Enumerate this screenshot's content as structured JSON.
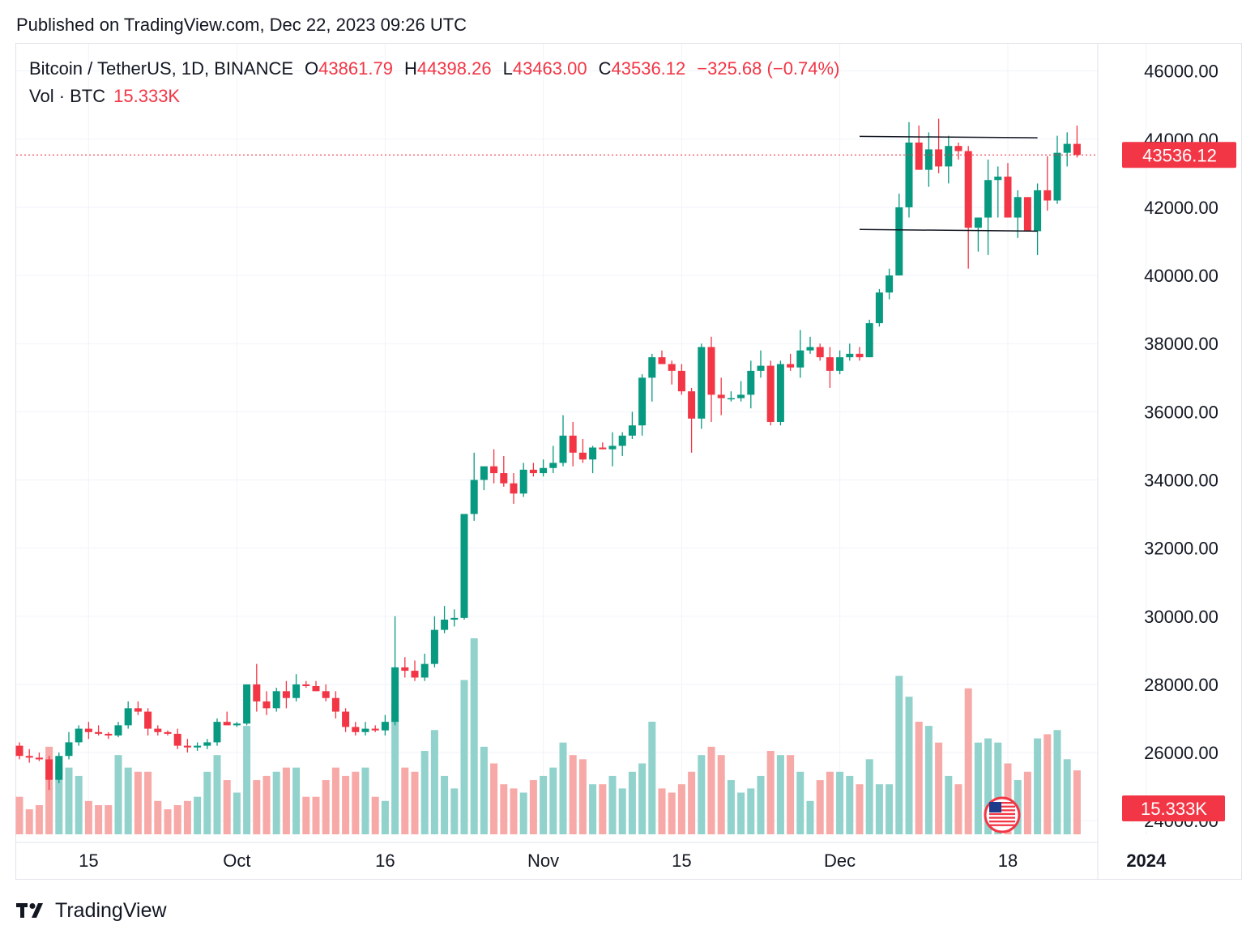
{
  "header": {
    "published": "Published on TradingView.com, Dec 22, 2023 09:26 UTC"
  },
  "legend": {
    "symbol": "Bitcoin / TetherUS, 1D, BINANCE",
    "open_label": "O",
    "open": "43861.79",
    "high_label": "H",
    "high": "44398.26",
    "low_label": "L",
    "low": "43463.00",
    "close_label": "C",
    "close": "43536.12",
    "change": "−325.68 (−0.74%)",
    "vol_label": "Vol · BTC",
    "vol_value": "15.333K"
  },
  "badges": {
    "last_price": "43536.12",
    "last_volume": "15.333K"
  },
  "footer": {
    "brand": "TradingView"
  },
  "colors": {
    "up": "#089981",
    "down": "#f23645",
    "up_vol": "#92d2cc",
    "down_vol": "#f7a9a7",
    "grid": "#f0f3fa"
  },
  "chart_data": {
    "type": "candlestick",
    "ylim": [
      23600,
      46800
    ],
    "y_ticks": [
      "46000.00",
      "44000.00",
      "42000.00",
      "40000.00",
      "38000.00",
      "36000.00",
      "34000.00",
      "32000.00",
      "30000.00",
      "28000.00",
      "26000.00",
      "24000.00"
    ],
    "y_tick_values": [
      46000,
      44000,
      42000,
      40000,
      38000,
      36000,
      34000,
      32000,
      30000,
      28000,
      26000,
      24000
    ],
    "x_ticks": [
      {
        "label": "15",
        "index": 7
      },
      {
        "label": "Oct",
        "index": 22
      },
      {
        "label": "16",
        "index": 37
      },
      {
        "label": "Nov",
        "index": 53
      },
      {
        "label": "15",
        "index": 67
      },
      {
        "label": "Dec",
        "index": 83
      },
      {
        "label": "18",
        "index": 100
      },
      {
        "label": "2024",
        "index": 114
      }
    ],
    "last_price": 43536.12,
    "annotations": {
      "upper_line": {
        "from_index": 85,
        "from": 44080,
        "to_index": 103,
        "to": 44040
      },
      "lower_line": {
        "from_index": 85,
        "from": 41350,
        "to_index": 103,
        "to": 41300
      }
    },
    "candles": [
      [
        26200,
        26300,
        25800,
        25900,
        9
      ],
      [
        25900,
        26100,
        25700,
        25850,
        6
      ],
      [
        25850,
        26000,
        25750,
        25800,
        7
      ],
      [
        25800,
        25900,
        24900,
        25200,
        21
      ],
      [
        25200,
        26000,
        25100,
        25900,
        17
      ],
      [
        25900,
        26600,
        25800,
        26300,
        16
      ],
      [
        26300,
        26800,
        26200,
        26700,
        14
      ],
      [
        26700,
        26900,
        26400,
        26600,
        8
      ],
      [
        26600,
        26800,
        26500,
        26550,
        7
      ],
      [
        26550,
        26600,
        26400,
        26500,
        7
      ],
      [
        26500,
        26900,
        26450,
        26800,
        19
      ],
      [
        26800,
        27500,
        26700,
        27300,
        16
      ],
      [
        27300,
        27500,
        27100,
        27200,
        15
      ],
      [
        27200,
        27300,
        26500,
        26700,
        15
      ],
      [
        26700,
        26800,
        26500,
        26600,
        8
      ],
      [
        26600,
        26650,
        26500,
        26550,
        6
      ],
      [
        26550,
        26700,
        26100,
        26200,
        7
      ],
      [
        26200,
        26400,
        26000,
        26150,
        8
      ],
      [
        26150,
        26300,
        26050,
        26200,
        9
      ],
      [
        26200,
        26400,
        26100,
        26300,
        15
      ],
      [
        26300,
        27000,
        26200,
        26900,
        19
      ],
      [
        26900,
        27200,
        26800,
        26800,
        13
      ],
      [
        26800,
        26900,
        26750,
        26850,
        10
      ],
      [
        26850,
        28000,
        26800,
        28000,
        26
      ],
      [
        28000,
        28600,
        27200,
        27500,
        13
      ],
      [
        27500,
        27800,
        27100,
        27300,
        14
      ],
      [
        27300,
        27900,
        27200,
        27800,
        15
      ],
      [
        27800,
        28100,
        27300,
        27600,
        16
      ],
      [
        27600,
        28300,
        27500,
        28000,
        16
      ],
      [
        28000,
        28100,
        27900,
        27950,
        9
      ],
      [
        27950,
        28100,
        27800,
        27800,
        9
      ],
      [
        27800,
        28000,
        27500,
        27600,
        13
      ],
      [
        27600,
        27800,
        27000,
        27200,
        16
      ],
      [
        27200,
        27300,
        26600,
        26750,
        14
      ],
      [
        26750,
        26900,
        26500,
        26600,
        15
      ],
      [
        26600,
        26900,
        26500,
        26700,
        16
      ],
      [
        26700,
        26800,
        26600,
        26650,
        9
      ],
      [
        26650,
        27100,
        26500,
        26900,
        8
      ],
      [
        26900,
        30000,
        26800,
        28500,
        31
      ],
      [
        28500,
        28800,
        28200,
        28400,
        16
      ],
      [
        28400,
        28700,
        28100,
        28200,
        15
      ],
      [
        28200,
        28900,
        28100,
        28600,
        20
      ],
      [
        28600,
        30000,
        28500,
        29600,
        25
      ],
      [
        29600,
        30300,
        29500,
        29900,
        14
      ],
      [
        29900,
        30200,
        29700,
        29950,
        11
      ],
      [
        29950,
        33000,
        29900,
        33000,
        37
      ],
      [
        33000,
        34800,
        32800,
        34000,
        47
      ],
      [
        34000,
        34300,
        33700,
        34400,
        21
      ],
      [
        34400,
        34900,
        33900,
        34200,
        17
      ],
      [
        34200,
        34700,
        33800,
        33900,
        12
      ],
      [
        33900,
        34200,
        33300,
        33600,
        11
      ],
      [
        33600,
        34500,
        33500,
        34300,
        10
      ],
      [
        34300,
        34500,
        34100,
        34200,
        13
      ],
      [
        34200,
        34600,
        34100,
        34350,
        14
      ],
      [
        34350,
        35000,
        34200,
        34500,
        16
      ],
      [
        34500,
        35900,
        34400,
        35300,
        22
      ],
      [
        35300,
        35700,
        34400,
        34800,
        19
      ],
      [
        34800,
        35200,
        34500,
        34600,
        18
      ],
      [
        34600,
        35000,
        34200,
        34950,
        12
      ],
      [
        34950,
        35100,
        34900,
        34900,
        12
      ],
      [
        34900,
        35400,
        34400,
        35000,
        14
      ],
      [
        35000,
        35400,
        34700,
        35300,
        11
      ],
      [
        35300,
        36000,
        35200,
        35600,
        15
      ],
      [
        35600,
        37100,
        35300,
        37000,
        17
      ],
      [
        37000,
        37700,
        36300,
        37600,
        27
      ],
      [
        37600,
        37800,
        37400,
        37400,
        11
      ],
      [
        37400,
        37500,
        36800,
        37200,
        10
      ],
      [
        37200,
        37400,
        36500,
        36600,
        12
      ],
      [
        36600,
        36700,
        34800,
        35800,
        15
      ],
      [
        35800,
        38000,
        35500,
        37900,
        19
      ],
      [
        37900,
        38200,
        35700,
        36500,
        21
      ],
      [
        36500,
        37000,
        35900,
        36400,
        19
      ],
      [
        36400,
        36600,
        36300,
        36400,
        13
      ],
      [
        36400,
        36900,
        36300,
        36500,
        10
      ],
      [
        36500,
        37500,
        36100,
        37200,
        11
      ],
      [
        37200,
        37800,
        37000,
        37350,
        14
      ],
      [
        37350,
        37500,
        35600,
        35700,
        20
      ],
      [
        35700,
        37500,
        35600,
        37400,
        19
      ],
      [
        37400,
        37700,
        37200,
        37300,
        19
      ],
      [
        37300,
        38400,
        37000,
        37800,
        15
      ],
      [
        37800,
        38200,
        37700,
        37900,
        8
      ],
      [
        37900,
        38000,
        37500,
        37600,
        13
      ],
      [
        37600,
        37900,
        36700,
        37200,
        15
      ],
      [
        37200,
        37800,
        37100,
        37600,
        15
      ],
      [
        37600,
        38000,
        37500,
        37700,
        14
      ],
      [
        37700,
        37900,
        37500,
        37600,
        12
      ],
      [
        37600,
        38700,
        37600,
        38600,
        18
      ],
      [
        38600,
        39600,
        38500,
        39500,
        12
      ],
      [
        39500,
        40200,
        39300,
        40000,
        12
      ],
      [
        40000,
        42400,
        40000,
        42000,
        38
      ],
      [
        42000,
        44500,
        41700,
        43900,
        33
      ],
      [
        43900,
        44400,
        43200,
        43100,
        27
      ],
      [
        43100,
        44200,
        42600,
        43700,
        26
      ],
      [
        43700,
        44600,
        43000,
        43200,
        22
      ],
      [
        43200,
        44100,
        42700,
        43800,
        14
      ],
      [
        43800,
        43900,
        43400,
        43650,
        12
      ],
      [
        43650,
        43800,
        40200,
        41400,
        35
      ],
      [
        41400,
        41700,
        40700,
        41700,
        22
      ],
      [
        41700,
        43400,
        40600,
        42800,
        23
      ],
      [
        42800,
        43200,
        41700,
        42900,
        22
      ],
      [
        42900,
        43300,
        41800,
        41700,
        17
      ],
      [
        41700,
        42500,
        41100,
        42300,
        13
      ],
      [
        42300,
        42300,
        41300,
        41300,
        15
      ],
      [
        41300,
        42700,
        40600,
        42500,
        23
      ],
      [
        42500,
        43500,
        41900,
        42200,
        24
      ],
      [
        42200,
        44100,
        42100,
        43600,
        25
      ],
      [
        43600,
        44200,
        43200,
        43862,
        18
      ],
      [
        43862,
        44398,
        43463,
        43536,
        15.333
      ]
    ]
  }
}
